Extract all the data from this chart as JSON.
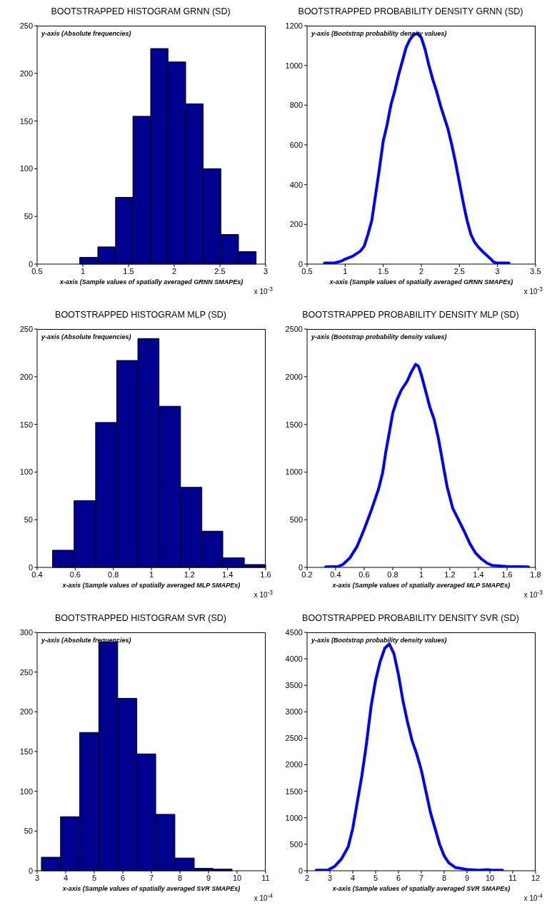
{
  "chart_data": [
    {
      "type": "histogram",
      "title": "BOOTSTRAPPED HISTOGRAM GRNN (SD)",
      "xlabel": "x-axis (Sample values of spatially averaged GRNN SMAPEs)",
      "ylabel": "y-axis (Absolute frequencies)",
      "annotations": [
        "x 10$^{-3}$"
      ],
      "color": "#00008f",
      "bins": [
        0.966,
        1.164,
        1.358,
        1.548,
        1.742,
        1.932,
        2.125,
        2.316,
        2.51,
        2.703,
        2.896
      ],
      "values": [
        7,
        18,
        70,
        155,
        226,
        212,
        168,
        100,
        31,
        13
      ],
      "xlim": [
        0.5,
        3
      ],
      "xticks": [
        0.5,
        1,
        1.5,
        2,
        2.5,
        3
      ],
      "ylim": [
        0,
        250
      ],
      "yticks": [
        0,
        50,
        100,
        150,
        200,
        250
      ],
      "grid": false
    },
    {
      "type": "line",
      "title": "BOOTSTRAPPED PROBABILITY DENSITY GRNN (SD)",
      "xlabel": "x-axis (Sample values of spatially averaged GRNN SMAPEs)",
      "ylabel": "y-axis (Bootstrap probability density values)",
      "annotations": [
        "x 10$^{-3}$"
      ],
      "color": "#0000ff",
      "marker": "none",
      "line_style": "solid",
      "x": [
        0.73,
        0.85,
        0.95,
        1.0,
        1.1,
        1.2,
        1.25,
        1.3,
        1.35,
        1.4,
        1.45,
        1.5,
        1.55,
        1.6,
        1.65,
        1.7,
        1.75,
        1.8,
        1.85,
        1.9,
        1.95,
        2.0,
        2.05,
        2.1,
        2.15,
        2.2,
        2.25,
        2.3,
        2.35,
        2.4,
        2.45,
        2.5,
        2.55,
        2.6,
        2.65,
        2.7,
        2.75,
        2.8,
        2.9,
        2.95,
        3.0,
        3.15
      ],
      "values": [
        5,
        5,
        15,
        25,
        40,
        65,
        90,
        150,
        220,
        350,
        480,
        620,
        700,
        800,
        870,
        950,
        1020,
        1090,
        1130,
        1155,
        1160,
        1140,
        1080,
        1000,
        930,
        870,
        800,
        740,
        680,
        600,
        510,
        410,
        310,
        220,
        150,
        110,
        85,
        65,
        30,
        10,
        5,
        5
      ],
      "xlim": [
        0.5,
        3.5
      ],
      "xticks": [
        0.5,
        1,
        1.5,
        2,
        2.5,
        3,
        3.5
      ],
      "ylim": [
        0,
        1200
      ],
      "yticks": [
        0,
        200,
        400,
        600,
        800,
        1000,
        1200
      ],
      "grid": false
    },
    {
      "type": "histogram",
      "title": "BOOTSTRAPPED HISTOGRAM MLP (SD)",
      "xlabel": "x-axis (Sample values of spatially averaged MLP SMAPEs)",
      "ylabel": "y-axis (Absolute frequencies)",
      "annotations": [
        "x 10$^{-3}$"
      ],
      "color": "#00008f",
      "bins": [
        0.481,
        0.594,
        0.707,
        0.818,
        0.929,
        1.04,
        1.153,
        1.265,
        1.375,
        1.488,
        1.6
      ],
      "values": [
        18,
        70,
        152,
        217,
        240,
        169,
        84,
        38,
        10,
        3
      ],
      "xlim": [
        0.4,
        1.6
      ],
      "xticks": [
        0.4,
        0.6,
        0.8,
        1,
        1.2,
        1.4,
        1.6
      ],
      "ylim": [
        0,
        250
      ],
      "yticks": [
        0,
        50,
        100,
        150,
        200,
        250
      ],
      "grid": false
    },
    {
      "type": "line",
      "title": "BOOTSTRAPPED PROBABILITY DENSITY MLP (SD)",
      "xlabel": "x-axis (Sample values of spatially averaged MLP SMAPEs)",
      "ylabel": "y-axis (Bootstrap probability density values)",
      "annotations": [
        "x 10$^{-3}$"
      ],
      "color": "#0000ff",
      "marker": "none",
      "line_style": "solid",
      "x": [
        0.33,
        0.42,
        0.45,
        0.5,
        0.55,
        0.6,
        0.65,
        0.7,
        0.73,
        0.75,
        0.78,
        0.8,
        0.83,
        0.86,
        0.9,
        0.93,
        0.96,
        0.98,
        1.0,
        1.03,
        1.06,
        1.09,
        1.12,
        1.15,
        1.18,
        1.22,
        1.26,
        1.3,
        1.34,
        1.38,
        1.42,
        1.46,
        1.5,
        1.6,
        1.75
      ],
      "values": [
        5,
        10,
        30,
        100,
        220,
        400,
        600,
        820,
        1000,
        1200,
        1450,
        1620,
        1760,
        1860,
        1950,
        2050,
        2130,
        2110,
        2020,
        1850,
        1680,
        1550,
        1350,
        1100,
        850,
        620,
        500,
        380,
        250,
        150,
        90,
        45,
        20,
        10,
        5
      ],
      "xlim": [
        0.2,
        1.8
      ],
      "xticks": [
        0.2,
        0.4,
        0.6,
        0.8,
        1,
        1.2,
        1.4,
        1.6,
        1.8
      ],
      "ylim": [
        0,
        2500
      ],
      "yticks": [
        0,
        500,
        1000,
        1500,
        2000,
        2500
      ],
      "grid": false
    },
    {
      "type": "histogram",
      "title": "BOOTSTRAPPED HISTOGRAM SVR (SD)",
      "xlabel": "x-axis (Sample values of spatially averaged SVR SMAPEs)",
      "ylabel": "y-axis (Absolute frequencies)",
      "annotations": [
        "x 10$^{-4}$"
      ],
      "color": "#00008f",
      "bins": [
        3.149,
        3.819,
        4.489,
        5.159,
        5.82,
        6.49,
        7.152,
        7.822,
        8.5,
        9.162,
        9.824
      ],
      "values": [
        17,
        68,
        174,
        288,
        217,
        147,
        71,
        16,
        3,
        2
      ],
      "xlim": [
        3,
        11
      ],
      "xticks": [
        3,
        4,
        5,
        6,
        7,
        8,
        9,
        10,
        11
      ],
      "ylim": [
        0,
        300
      ],
      "yticks": [
        0,
        50,
        100,
        150,
        200,
        250,
        300
      ],
      "grid": false
    },
    {
      "type": "line",
      "title": "BOOTSTRAPPED PROBABILITY DENSITY SVR (SD)",
      "xlabel": "x-axis (Sample values of spatially averaged SVR SMAPEs)",
      "ylabel": "y-axis (Bootstrap probability density values)",
      "annotations": [
        "x 10$^{-4}$"
      ],
      "color": "#0000ff",
      "marker": "none",
      "line_style": "solid",
      "x": [
        2.4,
        2.9,
        3.2,
        3.5,
        3.8,
        4.0,
        4.2,
        4.4,
        4.6,
        4.8,
        5.0,
        5.2,
        5.4,
        5.6,
        5.8,
        6.0,
        6.2,
        6.4,
        6.6,
        6.8,
        7.0,
        7.2,
        7.4,
        7.6,
        7.8,
        8.0,
        8.2,
        8.5,
        9.0,
        9.5,
        9.9,
        10.1,
        10.55
      ],
      "values": [
        10,
        10,
        80,
        220,
        450,
        800,
        1300,
        1800,
        2400,
        3100,
        3600,
        3950,
        4200,
        4280,
        4100,
        3700,
        3200,
        2800,
        2450,
        2200,
        1900,
        1500,
        1100,
        800,
        500,
        280,
        150,
        60,
        25,
        10,
        20,
        10,
        10
      ],
      "xlim": [
        2,
        12
      ],
      "xticks": [
        2,
        3,
        4,
        5,
        6,
        7,
        8,
        9,
        10,
        11,
        12
      ],
      "ylim": [
        0,
        4500
      ],
      "yticks": [
        0,
        500,
        1000,
        1500,
        2000,
        2500,
        3000,
        3500,
        4000,
        4500
      ],
      "grid": false
    }
  ]
}
